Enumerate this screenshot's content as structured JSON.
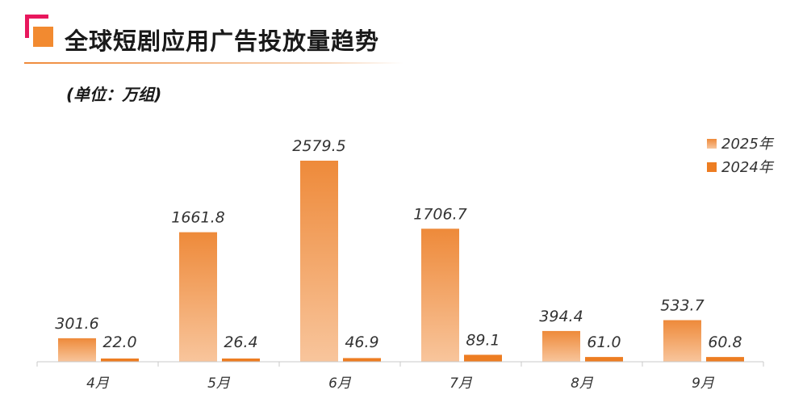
{
  "header": {
    "title": "全球短剧应用广告投放量趋势",
    "unit": "(单位：万组)"
  },
  "colors": {
    "accent_pink": "#e8175d",
    "accent_orange": "#f28a30",
    "series_2025_top": "#ee8a3a",
    "series_2025_bottom": "#f8c59c",
    "series_2024": "#ed7d22"
  },
  "chart_data": {
    "type": "bar",
    "categories": [
      "4月",
      "5月",
      "6月",
      "7月",
      "8月",
      "9月"
    ],
    "series": [
      {
        "name": "2025年",
        "values": [
          301.6,
          1661.8,
          2579.5,
          1706.7,
          394.4,
          533.7
        ],
        "labels": [
          "301.6",
          "1661.8",
          "2579.5",
          "1706.7",
          "394.4",
          "533.7"
        ]
      },
      {
        "name": "2024年",
        "values": [
          22.0,
          26.4,
          46.9,
          89.1,
          61.0,
          60.8
        ],
        "labels": [
          "22.0",
          "26.4",
          "46.9",
          "89.1",
          "61.0",
          "60.8"
        ]
      }
    ],
    "ylim": [
      0,
      2750
    ],
    "legend": "top-right",
    "grid": false
  }
}
